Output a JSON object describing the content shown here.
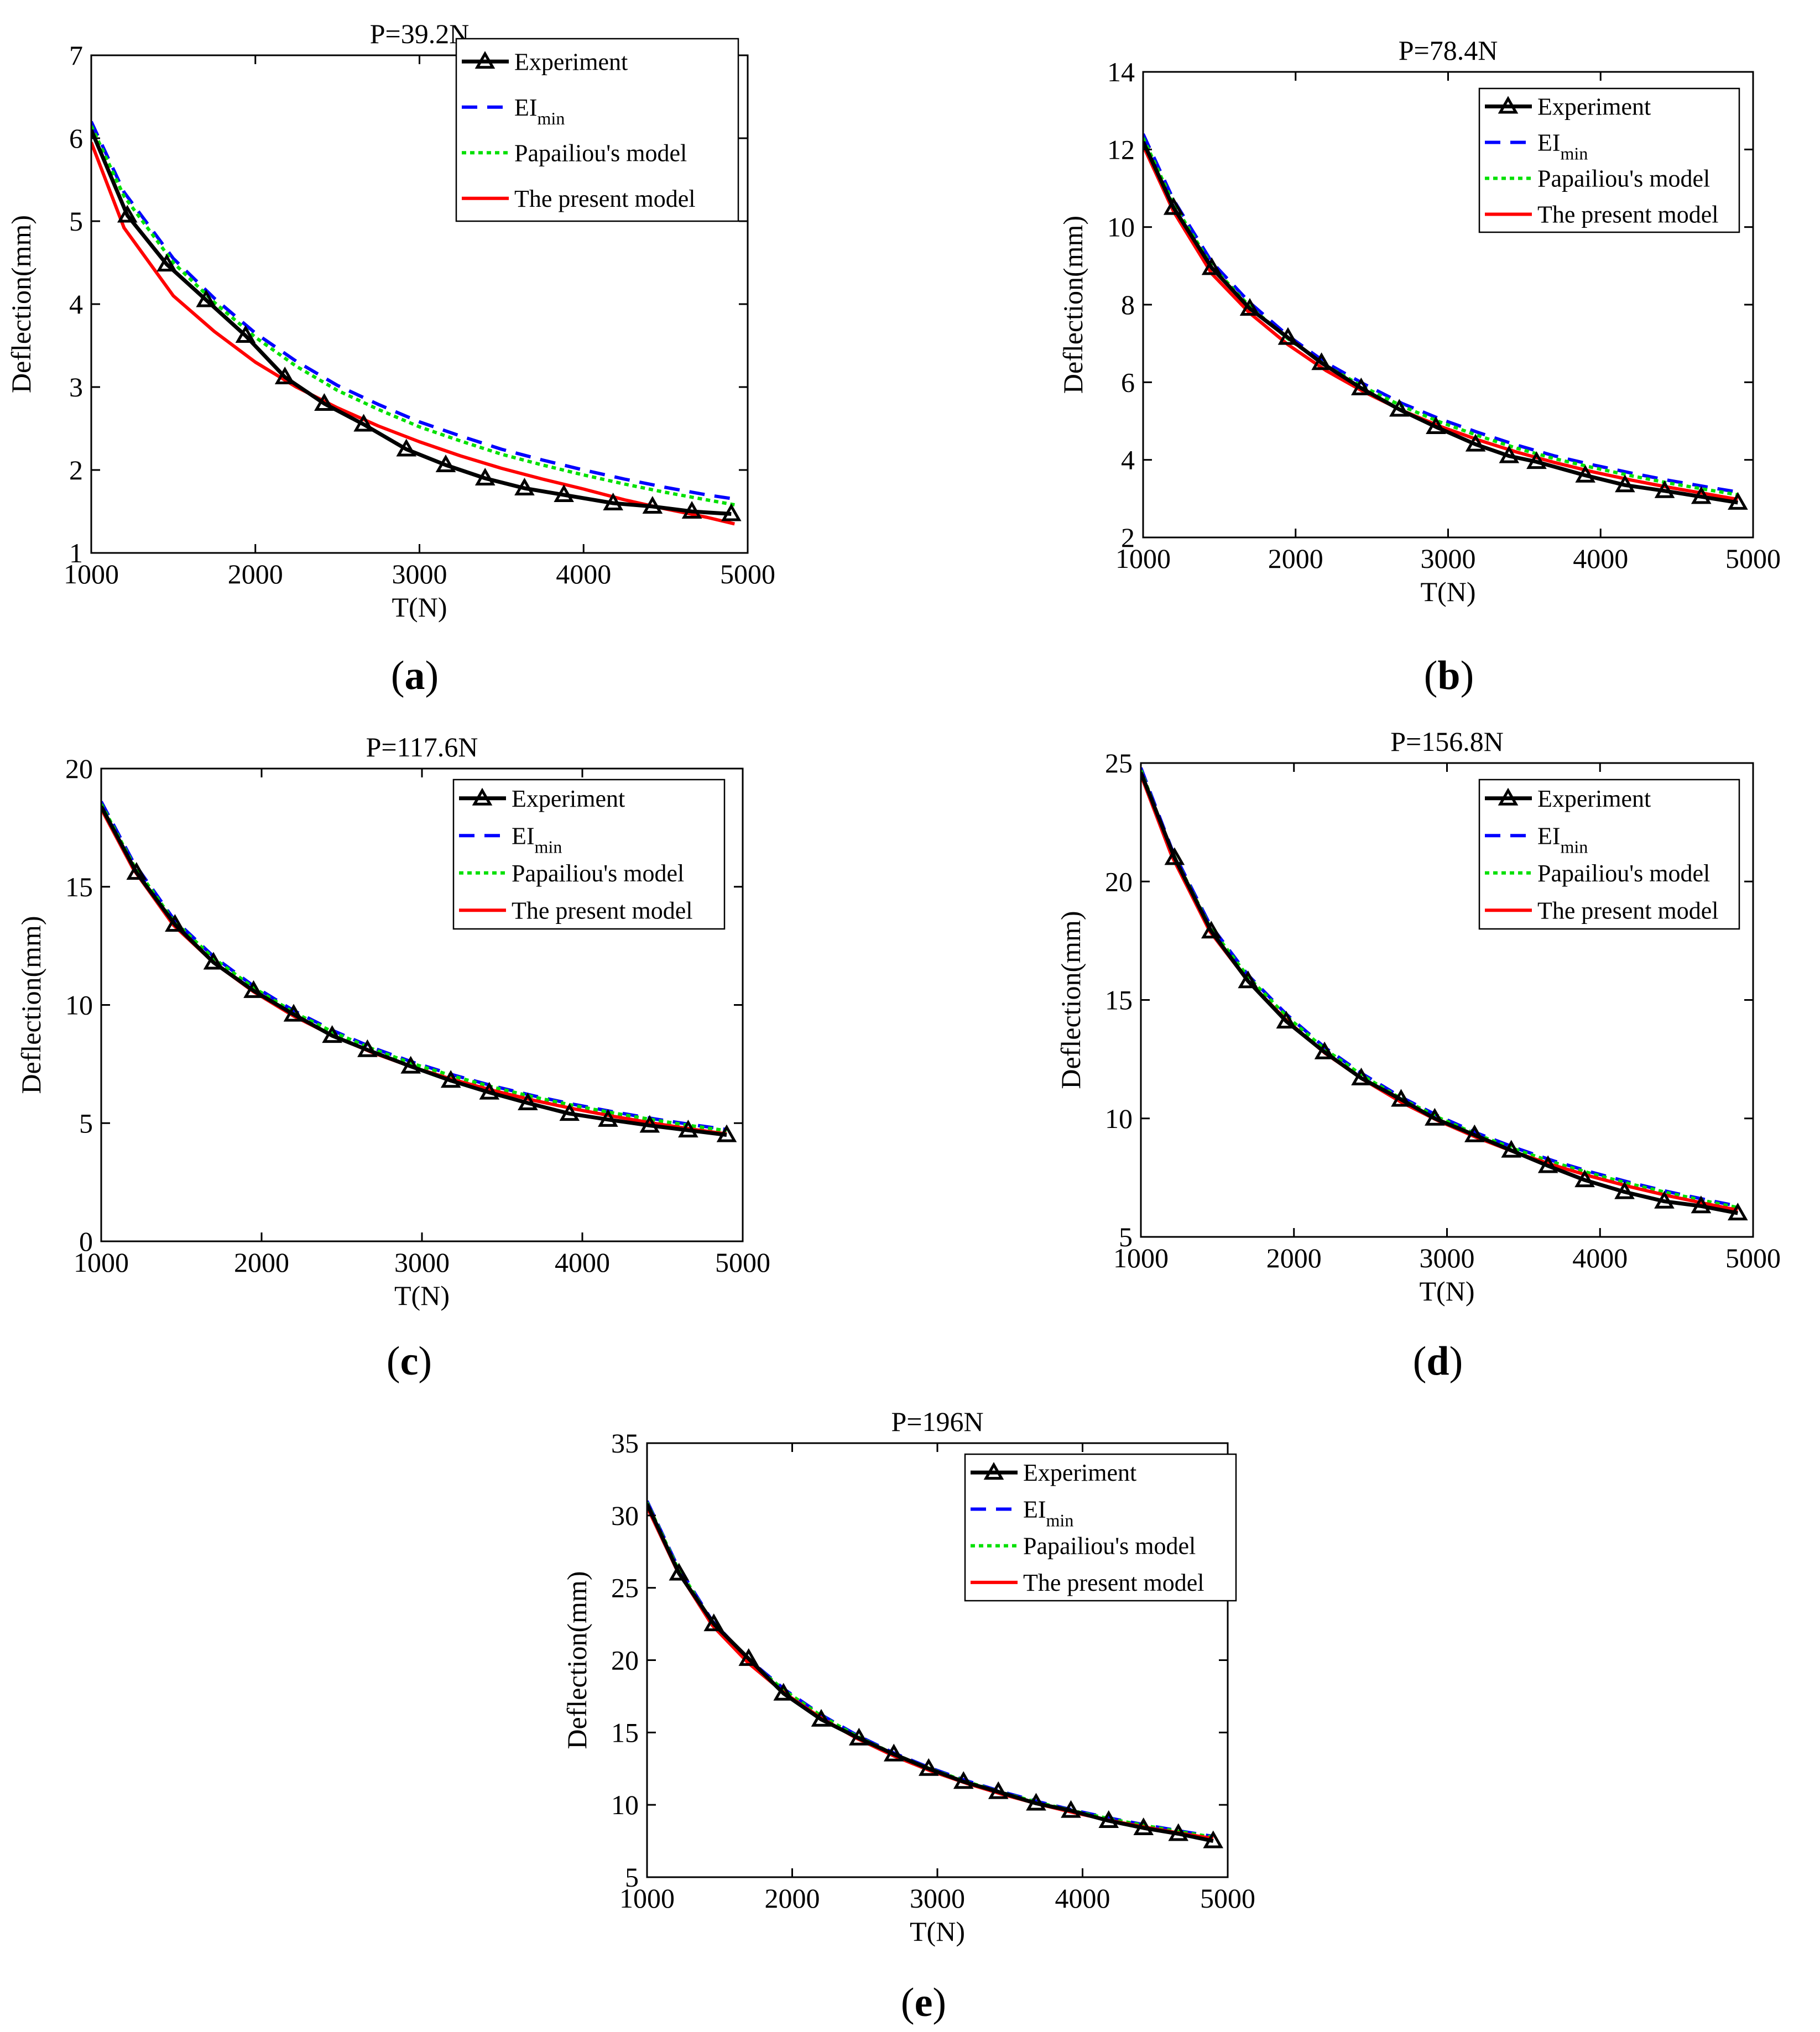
{
  "colors": {
    "experiment": "#000000",
    "ei_min": "#0000ff",
    "papailiou": "#00e000",
    "present": "#ff0000"
  },
  "legend": {
    "experiment": "Experiment",
    "ei_main": "EI",
    "ei_sub": "min",
    "papailiou": "Papailiou's model",
    "present": "The present model"
  },
  "panels": [
    {
      "label": "a"
    },
    {
      "label": "b"
    },
    {
      "label": "c"
    },
    {
      "label": "d"
    },
    {
      "label": "e"
    }
  ],
  "chart_data": [
    {
      "type": "line",
      "title": "P=39.2N",
      "xlabel": "T(N)",
      "ylabel": "Deflection(mm)",
      "xlim": [
        1000,
        5000
      ],
      "ylim": [
        1,
        7
      ],
      "xticks": [
        1000,
        2000,
        3000,
        4000,
        5000
      ],
      "yticks": [
        1,
        2,
        3,
        4,
        5,
        6,
        7
      ],
      "series": [
        {
          "name": "Experiment",
          "x": [
            1000,
            1220,
            1460,
            1700,
            1940,
            2180,
            2420,
            2660,
            2920,
            3160,
            3400,
            3640,
            3880,
            4180,
            4420,
            4660,
            4900
          ],
          "values": [
            6.1,
            5.07,
            4.48,
            4.05,
            3.62,
            3.12,
            2.8,
            2.55,
            2.25,
            2.06,
            1.9,
            1.78,
            1.7,
            1.6,
            1.56,
            1.5,
            1.47
          ]
        },
        {
          "name": "EI_min",
          "x": [
            1000,
            1200,
            1500,
            1750,
            2000,
            2250,
            2500,
            2750,
            3000,
            3250,
            3500,
            3750,
            4000,
            4250,
            4500,
            4750,
            4920
          ],
          "values": [
            6.2,
            5.35,
            4.55,
            4.07,
            3.65,
            3.31,
            3.02,
            2.79,
            2.58,
            2.41,
            2.25,
            2.12,
            2.0,
            1.89,
            1.79,
            1.7,
            1.65
          ]
        },
        {
          "name": "Papailiou's model",
          "x": [
            1000,
            1200,
            1500,
            1750,
            2000,
            2250,
            2500,
            2750,
            3000,
            3250,
            3500,
            3750,
            4000,
            4250,
            4500,
            4750,
            4920
          ],
          "values": [
            6.15,
            5.3,
            4.5,
            4.02,
            3.6,
            3.25,
            2.96,
            2.73,
            2.52,
            2.35,
            2.19,
            2.06,
            1.94,
            1.83,
            1.73,
            1.64,
            1.58
          ]
        },
        {
          "name": "The present model",
          "x": [
            1000,
            1200,
            1500,
            1750,
            2000,
            2250,
            2500,
            2750,
            3000,
            3250,
            3500,
            3750,
            4000,
            4250,
            4500,
            4750,
            4920
          ],
          "values": [
            5.95,
            4.92,
            4.1,
            3.67,
            3.3,
            3.0,
            2.75,
            2.53,
            2.34,
            2.17,
            2.02,
            1.89,
            1.77,
            1.64,
            1.53,
            1.43,
            1.35
          ]
        }
      ]
    },
    {
      "type": "line",
      "title": "P=78.4N",
      "xlabel": "T(N)",
      "ylabel": "Deflection(mm)",
      "xlim": [
        1000,
        5000
      ],
      "ylim": [
        2,
        14
      ],
      "xticks": [
        1000,
        2000,
        3000,
        4000,
        5000
      ],
      "yticks": [
        2,
        4,
        6,
        8,
        10,
        12,
        14
      ],
      "series": [
        {
          "name": "Experiment",
          "x": [
            1000,
            1200,
            1450,
            1700,
            1950,
            2170,
            2430,
            2680,
            2920,
            3180,
            3400,
            3580,
            3900,
            4160,
            4420,
            4660,
            4900
          ],
          "values": [
            12.2,
            10.5,
            8.95,
            7.9,
            7.15,
            6.5,
            5.85,
            5.3,
            4.85,
            4.4,
            4.1,
            3.95,
            3.6,
            3.35,
            3.2,
            3.05,
            2.9
          ]
        },
        {
          "name": "EI_min",
          "x": [
            1000,
            1200,
            1450,
            1700,
            1950,
            2200,
            2450,
            2700,
            2950,
            3200,
            3450,
            3700,
            3950,
            4200,
            4450,
            4700,
            4900
          ],
          "values": [
            12.4,
            10.7,
            9.1,
            8.05,
            7.2,
            6.5,
            5.95,
            5.45,
            5.05,
            4.7,
            4.38,
            4.1,
            3.87,
            3.66,
            3.47,
            3.3,
            3.17
          ]
        },
        {
          "name": "Papailiou's model",
          "x": [
            1000,
            1200,
            1450,
            1700,
            1950,
            2200,
            2450,
            2700,
            2950,
            3200,
            3450,
            3700,
            3950,
            4200,
            4450,
            4700,
            4900
          ],
          "values": [
            12.3,
            10.6,
            9.0,
            7.95,
            7.12,
            6.43,
            5.87,
            5.38,
            4.97,
            4.62,
            4.3,
            4.03,
            3.8,
            3.59,
            3.4,
            3.23,
            3.1
          ]
        },
        {
          "name": "The present model",
          "x": [
            1000,
            1200,
            1450,
            1700,
            1950,
            2200,
            2450,
            2700,
            2950,
            3200,
            3450,
            3700,
            3950,
            4200,
            4450,
            4700,
            4900
          ],
          "values": [
            12.1,
            10.4,
            8.8,
            7.78,
            6.97,
            6.3,
            5.75,
            5.27,
            4.86,
            4.51,
            4.2,
            3.93,
            3.69,
            3.48,
            3.29,
            3.12,
            2.98
          ]
        }
      ]
    },
    {
      "type": "line",
      "title": "P=117.6N",
      "xlabel": "T(N)",
      "ylabel": "Deflection(mm)",
      "xlim": [
        1000,
        5000
      ],
      "ylim": [
        0,
        20
      ],
      "xticks": [
        1000,
        2000,
        3000,
        4000,
        5000
      ],
      "yticks": [
        0,
        5,
        10,
        15,
        20
      ],
      "series": [
        {
          "name": "Experiment",
          "x": [
            1000,
            1220,
            1460,
            1700,
            1950,
            2200,
            2440,
            2660,
            2930,
            3180,
            3420,
            3660,
            3920,
            4160,
            4420,
            4660,
            4900
          ],
          "values": [
            18.4,
            15.6,
            13.4,
            11.8,
            10.6,
            9.6,
            8.7,
            8.1,
            7.4,
            6.8,
            6.3,
            5.85,
            5.4,
            5.15,
            4.9,
            4.7,
            4.5
          ]
        },
        {
          "name": "EI_min",
          "x": [
            1000,
            1200,
            1450,
            1700,
            1950,
            2200,
            2450,
            2700,
            2950,
            3200,
            3450,
            3700,
            3950,
            4200,
            4450,
            4700,
            4900
          ],
          "values": [
            18.6,
            16.05,
            13.65,
            12.05,
            10.8,
            9.76,
            8.9,
            8.17,
            7.56,
            7.03,
            6.56,
            6.15,
            5.79,
            5.47,
            5.18,
            4.92,
            4.73
          ]
        },
        {
          "name": "Papailiou's model",
          "x": [
            1000,
            1200,
            1450,
            1700,
            1950,
            2200,
            2450,
            2700,
            2950,
            3200,
            3450,
            3700,
            3950,
            4200,
            4450,
            4700,
            4900
          ],
          "values": [
            18.5,
            15.95,
            13.57,
            11.98,
            10.73,
            9.69,
            8.84,
            8.12,
            7.5,
            6.98,
            6.51,
            6.1,
            5.74,
            5.42,
            5.13,
            4.87,
            4.68
          ]
        },
        {
          "name": "The present model",
          "x": [
            1000,
            1200,
            1450,
            1700,
            1950,
            2200,
            2450,
            2700,
            2950,
            3200,
            3450,
            3700,
            3950,
            4200,
            4450,
            4700,
            4900
          ],
          "values": [
            18.3,
            15.75,
            13.38,
            11.8,
            10.56,
            9.53,
            8.68,
            7.96,
            7.35,
            6.83,
            6.37,
            5.96,
            5.6,
            5.28,
            4.99,
            4.73,
            4.54
          ]
        }
      ]
    },
    {
      "type": "line",
      "title": "P=156.8N",
      "xlabel": "T(N)",
      "ylabel": "Deflection(mm)",
      "xlim": [
        1000,
        5000
      ],
      "ylim": [
        5,
        25
      ],
      "xticks": [
        1000,
        2000,
        3000,
        4000,
        5000
      ],
      "yticks": [
        5,
        10,
        15,
        20,
        25
      ],
      "series": [
        {
          "name": "Experiment",
          "x": [
            1000,
            1220,
            1460,
            1700,
            1950,
            2200,
            2440,
            2700,
            2920,
            3180,
            3420,
            3660,
            3900,
            4160,
            4420,
            4660,
            4900
          ],
          "values": [
            24.6,
            21.0,
            17.9,
            15.8,
            14.1,
            12.8,
            11.7,
            10.8,
            10.0,
            9.3,
            8.65,
            8.0,
            7.4,
            6.9,
            6.5,
            6.3,
            6.0
          ]
        },
        {
          "name": "EI_min",
          "x": [
            1000,
            1200,
            1450,
            1700,
            1950,
            2200,
            2450,
            2700,
            2950,
            3200,
            3450,
            3700,
            3950,
            4200,
            4450,
            4700,
            4900
          ],
          "values": [
            24.8,
            21.4,
            18.2,
            16.05,
            14.4,
            13.0,
            11.87,
            10.9,
            10.08,
            9.37,
            8.75,
            8.2,
            7.72,
            7.29,
            6.9,
            6.56,
            6.3
          ]
        },
        {
          "name": "Papailiou's model",
          "x": [
            1000,
            1200,
            1450,
            1700,
            1950,
            2200,
            2450,
            2700,
            2950,
            3200,
            3450,
            3700,
            3950,
            4200,
            4450,
            4700,
            4900
          ],
          "values": [
            24.7,
            21.3,
            18.1,
            15.98,
            14.32,
            12.93,
            11.8,
            10.84,
            10.02,
            9.31,
            8.69,
            8.14,
            7.66,
            7.23,
            6.85,
            6.5,
            6.24
          ]
        },
        {
          "name": "The present model",
          "x": [
            1000,
            1200,
            1450,
            1700,
            1950,
            2200,
            2450,
            2700,
            2950,
            3200,
            3450,
            3700,
            3950,
            4200,
            4450,
            4700,
            4900
          ],
          "values": [
            24.5,
            21.1,
            17.9,
            15.8,
            14.15,
            12.77,
            11.65,
            10.69,
            9.88,
            9.18,
            8.56,
            8.02,
            7.54,
            7.11,
            6.73,
            6.39,
            6.13
          ]
        }
      ]
    },
    {
      "type": "line",
      "title": "P=196N",
      "xlabel": "T(N)",
      "ylabel": "Deflection(mm)",
      "xlim": [
        1000,
        5000
      ],
      "ylim": [
        5,
        35
      ],
      "xticks": [
        1000,
        2000,
        3000,
        4000,
        5000
      ],
      "yticks": [
        5,
        10,
        15,
        20,
        25,
        30,
        35
      ],
      "series": [
        {
          "name": "Experiment",
          "x": [
            1000,
            1220,
            1460,
            1700,
            1940,
            2200,
            2460,
            2700,
            2940,
            3180,
            3420,
            3680,
            3920,
            4180,
            4420,
            4660,
            4900
          ],
          "values": [
            30.8,
            26.0,
            22.5,
            20.1,
            17.7,
            15.9,
            14.6,
            13.5,
            12.5,
            11.6,
            10.9,
            10.1,
            9.6,
            8.9,
            8.4,
            8.0,
            7.5
          ]
        },
        {
          "name": "EI_min",
          "x": [
            1000,
            1200,
            1450,
            1700,
            1950,
            2200,
            2450,
            2700,
            2950,
            3200,
            3450,
            3700,
            3950,
            4200,
            4450,
            4700,
            4900
          ],
          "values": [
            31.0,
            26.7,
            22.7,
            20.05,
            17.95,
            16.22,
            14.79,
            13.58,
            12.55,
            11.67,
            10.89,
            10.2,
            9.6,
            9.06,
            8.58,
            8.14,
            7.82
          ]
        },
        {
          "name": "Papailiou's model",
          "x": [
            1000,
            1200,
            1450,
            1700,
            1950,
            2200,
            2450,
            2700,
            2950,
            3200,
            3450,
            3700,
            3950,
            4200,
            4450,
            4700,
            4900
          ],
          "values": [
            30.9,
            26.6,
            22.6,
            19.97,
            17.88,
            16.15,
            14.72,
            13.52,
            12.49,
            11.61,
            10.83,
            10.15,
            9.55,
            9.01,
            8.53,
            8.09,
            7.77
          ]
        },
        {
          "name": "The present model",
          "x": [
            1000,
            1200,
            1450,
            1700,
            1950,
            2200,
            2450,
            2700,
            2950,
            3200,
            3450,
            3700,
            3950,
            4200,
            4450,
            4700,
            4900
          ],
          "values": [
            30.6,
            26.35,
            22.4,
            19.78,
            17.7,
            15.99,
            14.57,
            13.38,
            12.36,
            11.49,
            10.72,
            10.04,
            9.44,
            8.9,
            8.42,
            7.99,
            7.67
          ]
        }
      ]
    }
  ]
}
